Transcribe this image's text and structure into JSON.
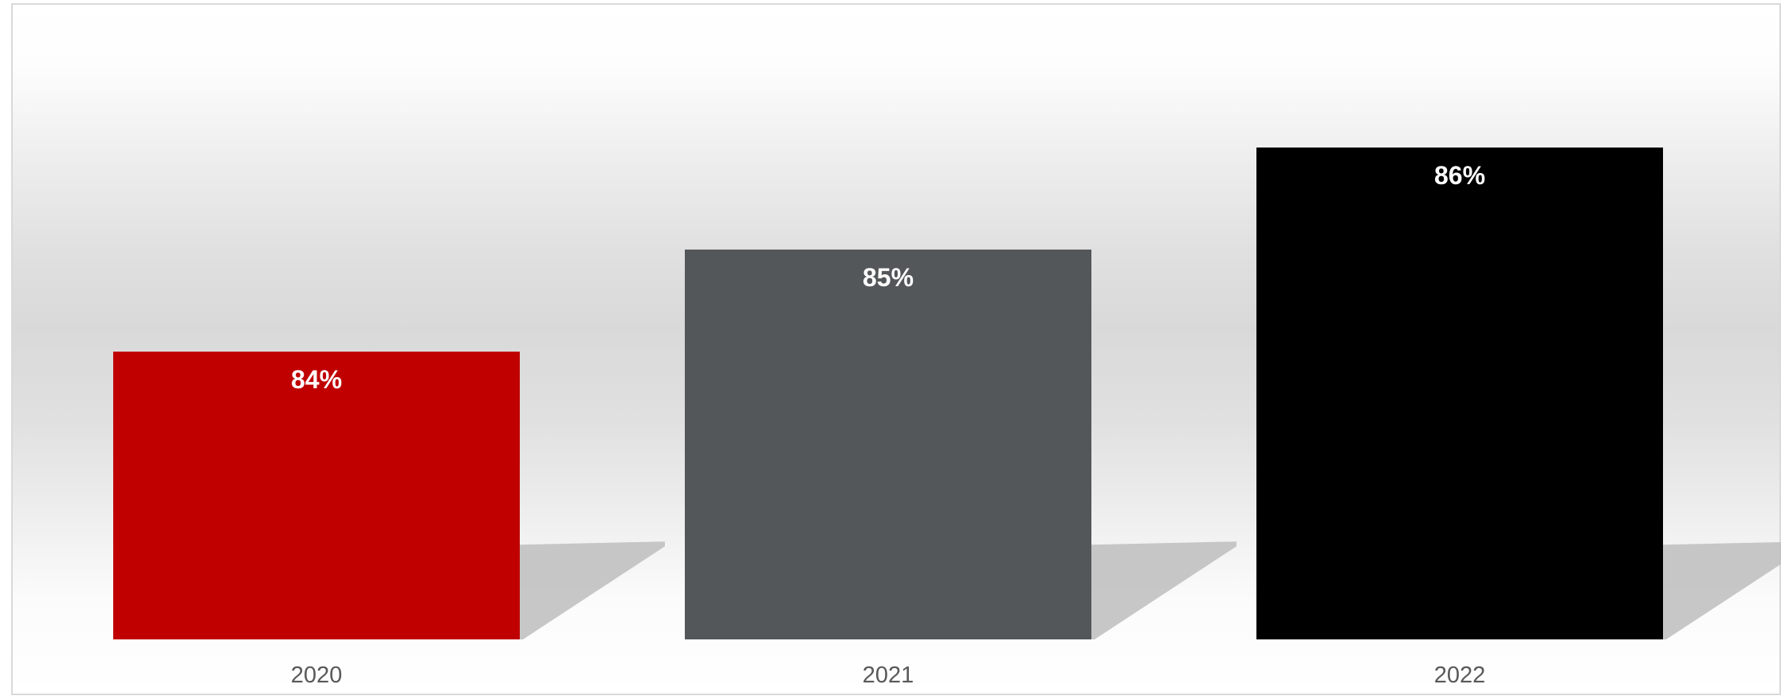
{
  "chart_data": {
    "type": "bar",
    "title": "",
    "xlabel": "",
    "ylabel": "",
    "categories": [
      "2020",
      "2021",
      "2022"
    ],
    "values": [
      84,
      85,
      86
    ],
    "data_labels": [
      "84%",
      "85%",
      "86%"
    ],
    "unit": "%",
    "bar_colors": [
      "#c00000",
      "#53575a",
      "#000000"
    ],
    "axes_visible": false,
    "grid": false,
    "legend": "none"
  }
}
